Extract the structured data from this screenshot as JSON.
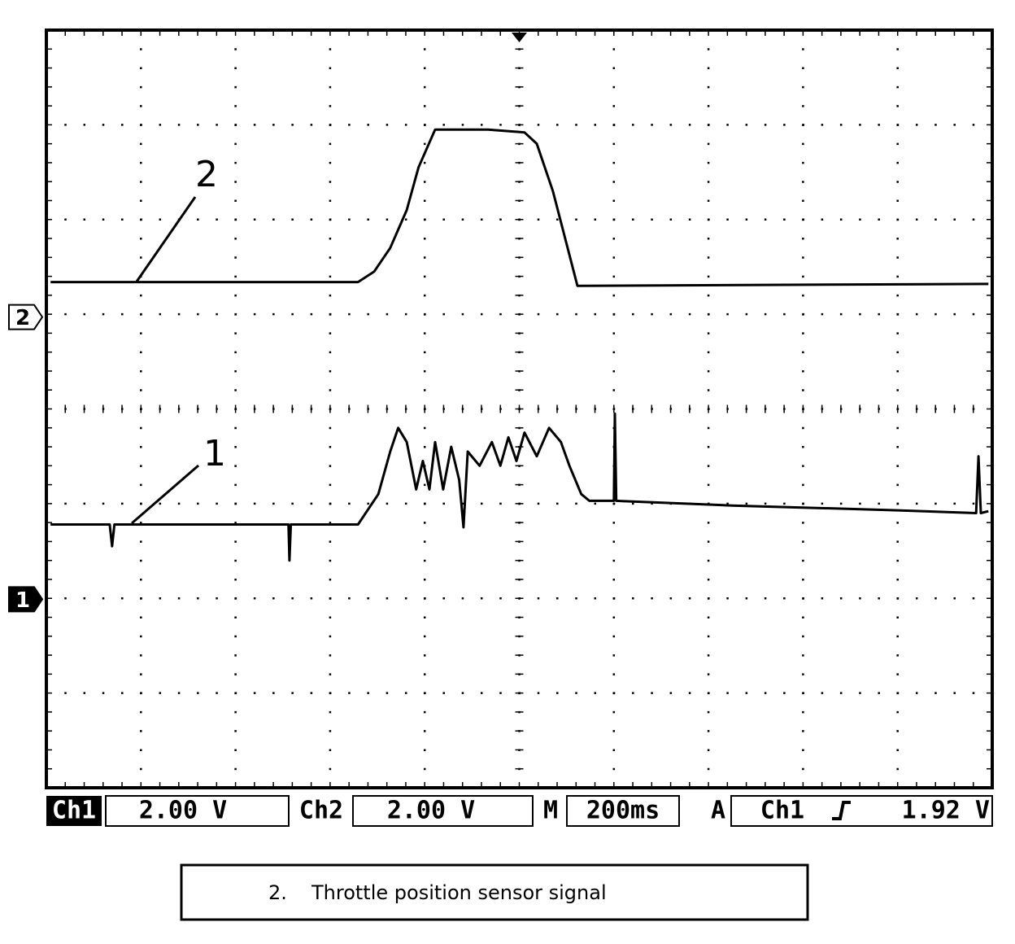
{
  "chart_data": {
    "type": "line",
    "xlim": [
      -1000,
      1000
    ],
    "ylim": [
      -4,
      4
    ],
    "grid": {
      "x_divisions": 10,
      "y_divisions": 8
    },
    "series": [
      {
        "name": "2",
        "color": "#000000",
        "ground": 0.97,
        "x": [
          -991,
          -341,
          -307,
          -273,
          -238,
          -213,
          -178,
          -66,
          11,
          37,
          71,
          97,
          123,
          992
        ],
        "values": [
          1.34,
          1.34,
          1.45,
          1.7,
          2.1,
          2.55,
          2.95,
          2.95,
          2.92,
          2.8,
          2.3,
          1.8,
          1.3,
          1.32
        ]
      },
      {
        "name": "1",
        "color": "#000000",
        "ground": -2.01,
        "x": [
          -991,
          -866,
          -861,
          -856,
          -488,
          -486,
          -483,
          -341,
          -298,
          -273,
          -256,
          -238,
          -218,
          -204,
          -190,
          -178,
          -161,
          -144,
          -127,
          -118,
          -109,
          -84,
          -58,
          -40,
          -23,
          -6,
          11,
          37,
          63,
          88,
          106,
          131,
          148,
          200,
          202,
          205,
          450,
          794,
          966,
          971,
          976,
          992
        ],
        "values": [
          -1.22,
          -1.22,
          -1.45,
          -1.22,
          -1.22,
          -1.6,
          -1.22,
          -1.22,
          -0.9,
          -0.45,
          -0.2,
          -0.35,
          -0.85,
          -0.55,
          -0.85,
          -0.35,
          -0.85,
          -0.4,
          -0.75,
          -1.25,
          -0.45,
          -0.6,
          -0.35,
          -0.6,
          -0.3,
          -0.55,
          -0.25,
          -0.5,
          -0.2,
          -0.35,
          -0.6,
          -0.9,
          -0.97,
          -0.97,
          -0.05,
          -0.97,
          -1.02,
          -1.07,
          -1.1,
          -0.5,
          -1.1,
          -1.08
        ]
      }
    ],
    "status_bar": {
      "ch1_label": "Ch1",
      "ch1_scale": "2.00 V",
      "ch2_label": "Ch2",
      "ch2_scale": "2.00 V",
      "time_label": "M",
      "time_scale": "200ms",
      "trigger_label": "A",
      "trigger_source": "Ch1",
      "trigger_level": "1.92 V"
    }
  },
  "caption": {
    "number": "2.",
    "text": "Throttle position sensor signal"
  }
}
